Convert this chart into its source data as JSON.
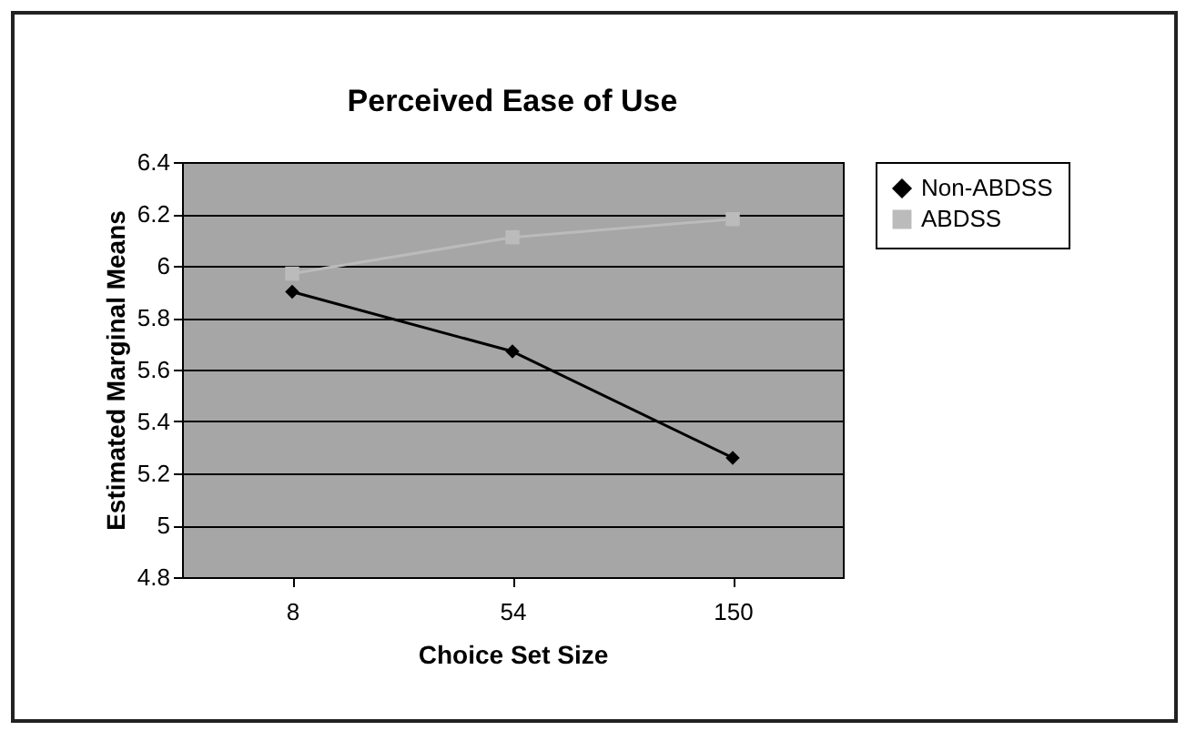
{
  "chart_data": {
    "type": "line",
    "title": "Perceived Ease of Use",
    "xlabel": "Choice Set Size",
    "ylabel": "Estimated Marginal Means",
    "categories": [
      "8",
      "54",
      "150"
    ],
    "series": [
      {
        "name": "Non-ABDSS",
        "color": "#000000",
        "marker": "diamond",
        "values": [
          5.9,
          5.67,
          5.26
        ]
      },
      {
        "name": "ABDSS",
        "color": "#bbbbbb",
        "marker": "square",
        "values": [
          5.97,
          6.11,
          6.18
        ]
      }
    ],
    "ylim": [
      4.8,
      6.4
    ],
    "yticks": [
      4.8,
      5,
      5.2,
      5.4,
      5.6,
      5.8,
      6,
      6.2,
      6.4
    ],
    "grid": "y",
    "legend": "right",
    "line_style": "solid"
  }
}
